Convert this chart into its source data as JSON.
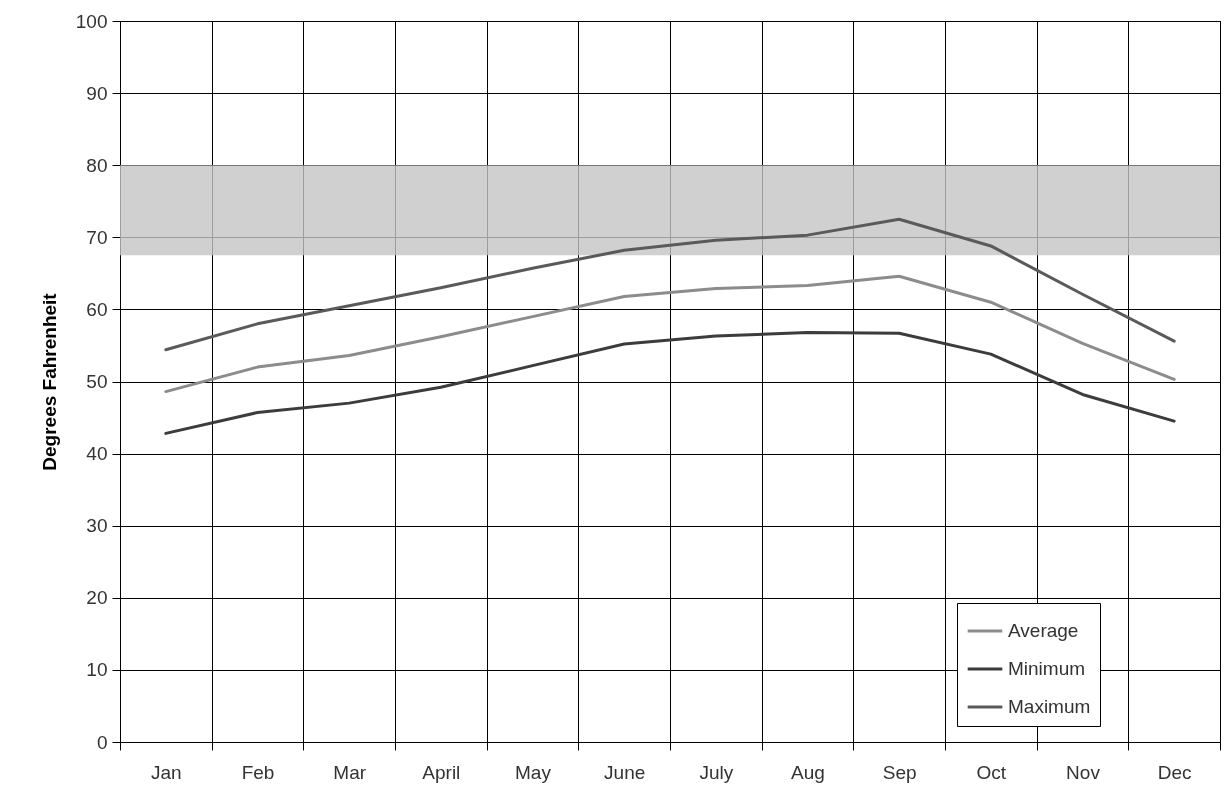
{
  "chart_data": {
    "type": "line",
    "ylabel": "Degrees Fahrenheit",
    "categories": [
      "Jan",
      "Feb",
      "Mar",
      "April",
      "May",
      "June",
      "July",
      "Aug",
      "Sep",
      "Oct",
      "Nov",
      "Dec"
    ],
    "series": [
      {
        "name": "Average",
        "color": "#8c8c8c",
        "values": [
          48.6,
          52.0,
          53.6,
          56.2,
          59.0,
          61.8,
          62.9,
          63.3,
          64.6,
          61.0,
          55.3,
          50.3
        ]
      },
      {
        "name": "Minimum",
        "color": "#3c3c3c",
        "values": [
          42.8,
          45.7,
          47.0,
          49.2,
          52.2,
          55.2,
          56.3,
          56.8,
          56.7,
          53.8,
          48.2,
          44.5
        ]
      },
      {
        "name": "Maximum",
        "color": "#5a5a5a",
        "values": [
          54.4,
          58.0,
          60.5,
          63.0,
          65.7,
          68.2,
          69.6,
          70.3,
          72.5,
          68.8,
          62.1,
          55.6
        ]
      }
    ],
    "ylim": [
      0,
      100
    ],
    "yticks": [
      0,
      10,
      20,
      30,
      40,
      50,
      60,
      70,
      80,
      90,
      100
    ],
    "bands": [
      {
        "axis": "y",
        "from": 67.5,
        "to": 80,
        "color": "#c4c4c4"
      }
    ],
    "grid": true,
    "legend": "bottom right",
    "line_style": "solid"
  }
}
